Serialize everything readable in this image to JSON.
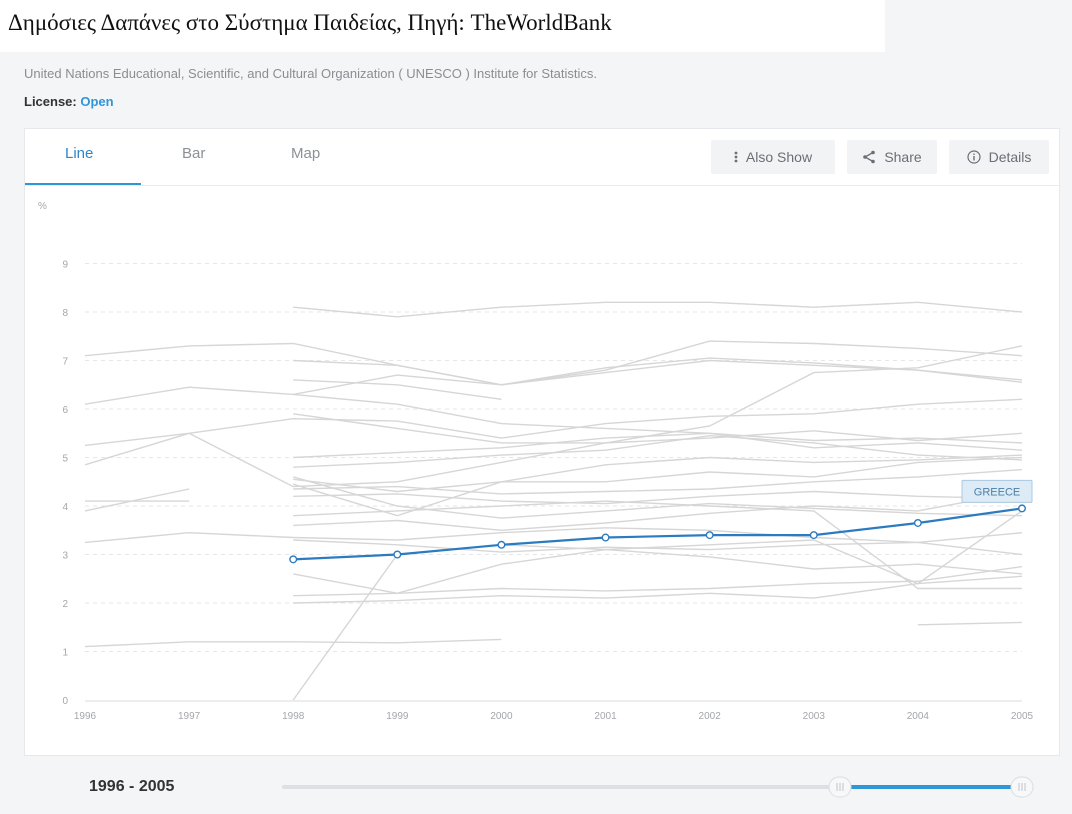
{
  "page_title": "Δημόσιες Δαπάνες στο Σύστημα Παιδείας, Πηγή: TheWorldBank",
  "source": "United Nations Educational, Scientific, and Cultural Organization ( UNESCO ) Institute for Statistics.",
  "license": {
    "label": "License:",
    "value": "Open"
  },
  "tabs": [
    {
      "label": "Line",
      "active": true
    },
    {
      "label": "Bar",
      "active": false
    },
    {
      "label": "Map",
      "active": false
    }
  ],
  "toolbar": {
    "also_show": {
      "label": "Also Show",
      "icon": "more-vertical-icon"
    },
    "share": {
      "label": "Share",
      "icon": "share-icon"
    },
    "details": {
      "label": "Details",
      "icon": "info-icon"
    }
  },
  "range": {
    "label": "1996 - 2005",
    "start": 1996,
    "end": 2005
  },
  "colors": {
    "highlight": "#2c7bbf",
    "background_lines": "#d6d6d6",
    "accent": "#2f96d8",
    "tooltip_bg": "#dcebf6"
  },
  "chart_data": {
    "type": "line",
    "title": "",
    "xlabel": "",
    "ylabel": "%",
    "x": [
      1996,
      1997,
      1998,
      1999,
      2000,
      2001,
      2002,
      2003,
      2004,
      2005
    ],
    "ylim": [
      0,
      10
    ],
    "yticks": [
      0,
      1,
      2,
      3,
      4,
      5,
      6,
      7,
      8,
      9
    ],
    "grid": true,
    "highlight_series": {
      "name": "GREECE",
      "values": [
        null,
        null,
        2.9,
        3.0,
        3.2,
        3.35,
        3.4,
        3.4,
        3.65,
        3.95
      ]
    },
    "background_series": [
      [
        null,
        null,
        8.1,
        7.9,
        8.1,
        8.2,
        8.2,
        8.1,
        8.2,
        8.0
      ],
      [
        7.1,
        7.3,
        7.35,
        6.9,
        6.5,
        6.8,
        7.4,
        7.35,
        7.25,
        7.1
      ],
      [
        6.1,
        6.45,
        6.3,
        6.7,
        6.5,
        6.85,
        7.05,
        6.95,
        6.8,
        6.6
      ],
      [
        5.25,
        5.5,
        5.8,
        5.75,
        5.4,
        5.7,
        5.85,
        5.9,
        6.1,
        6.2
      ],
      [
        4.85,
        5.5,
        4.4,
        4.5,
        4.9,
        5.3,
        5.65,
        6.75,
        6.85,
        7.3
      ],
      [
        null,
        null,
        7.0,
        6.9,
        6.5,
        6.75,
        7.0,
        6.9,
        6.8,
        6.55
      ],
      [
        null,
        null,
        6.3,
        6.1,
        5.7,
        5.6,
        5.5,
        5.35,
        5.4,
        5.3
      ],
      [
        null,
        null,
        5.9,
        5.6,
        5.3,
        5.3,
        5.4,
        5.55,
        5.35,
        5.5
      ],
      [
        null,
        null,
        5.0,
        5.1,
        5.2,
        5.4,
        5.5,
        5.2,
        5.3,
        5.15
      ],
      [
        null,
        null,
        4.8,
        4.9,
        5.05,
        5.15,
        5.45,
        5.3,
        5.05,
        4.95
      ],
      [
        null,
        null,
        4.55,
        4.3,
        4.5,
        4.85,
        5.0,
        4.9,
        4.95,
        5.05
      ],
      [
        null,
        null,
        4.35,
        4.4,
        4.25,
        4.3,
        4.35,
        4.5,
        4.6,
        4.75
      ],
      [
        null,
        null,
        4.2,
        4.25,
        4.1,
        4.05,
        4.2,
        4.3,
        4.2,
        4.15
      ],
      [
        null,
        null,
        4.6,
        4.0,
        3.75,
        3.9,
        4.05,
        3.95,
        3.85,
        3.8
      ],
      [
        null,
        null,
        3.6,
        3.7,
        3.5,
        3.65,
        3.85,
        4.0,
        3.9,
        4.3
      ],
      [
        3.25,
        3.45,
        3.35,
        3.3,
        3.45,
        3.55,
        3.5,
        3.35,
        3.25,
        3.0
      ],
      [
        null,
        null,
        3.3,
        3.2,
        3.05,
        3.15,
        3.1,
        3.2,
        3.25,
        3.45
      ],
      [
        null,
        null,
        2.6,
        2.2,
        2.8,
        3.1,
        2.95,
        2.7,
        2.8,
        2.6
      ],
      [
        null,
        null,
        2.15,
        2.2,
        2.3,
        2.25,
        2.3,
        2.4,
        2.45,
        2.75
      ],
      [
        null,
        null,
        2.0,
        2.05,
        2.15,
        2.1,
        2.2,
        2.1,
        2.4,
        2.55
      ],
      [
        null,
        null,
        0.0,
        3.0,
        3.2,
        3.1,
        3.2,
        3.3,
        2.4,
        3.9
      ],
      [
        null,
        null,
        3.8,
        3.9,
        4.0,
        4.1,
        4.0,
        3.9,
        2.3,
        2.3
      ],
      [
        1.1,
        1.2,
        1.2,
        1.18,
        1.25,
        null,
        null,
        null,
        null,
        null
      ],
      [
        null,
        null,
        null,
        null,
        null,
        null,
        null,
        null,
        1.55,
        1.6
      ],
      [
        3.9,
        4.35,
        null,
        null,
        null,
        null,
        null,
        null,
        null,
        null
      ],
      [
        4.1,
        4.1,
        null,
        null,
        null,
        null,
        null,
        null,
        null,
        null
      ],
      [
        null,
        null,
        4.45,
        3.8,
        4.5,
        4.5,
        4.7,
        4.6,
        4.9,
        5.0
      ],
      [
        null,
        null,
        6.6,
        6.5,
        6.2,
        null,
        null,
        null,
        null,
        null
      ]
    ]
  }
}
